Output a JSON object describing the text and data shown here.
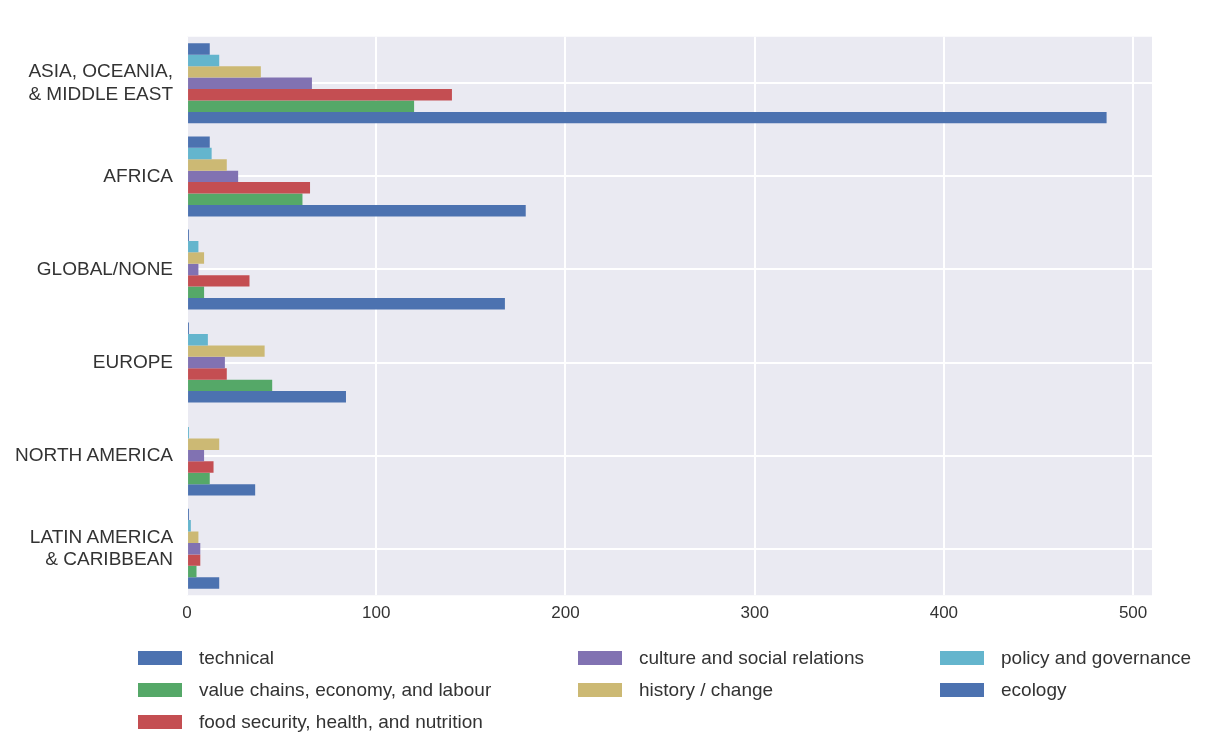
{
  "chart_data": {
    "type": "bar",
    "orientation": "horizontal",
    "categories": [
      "ASIA, OCEANIA,\n& MIDDLE EAST",
      "AFRICA",
      "GLOBAL/NONE",
      "EUROPE",
      "NORTH AMERICA",
      "LATIN AMERICA\n& CARIBBEAN"
    ],
    "series": [
      {
        "name": "technical",
        "color": "#4c72b0",
        "values": [
          486,
          179,
          168,
          84,
          36,
          17
        ]
      },
      {
        "name": "value chains, economy, and labour",
        "color": "#55a868",
        "values": [
          120,
          61,
          9,
          45,
          12,
          5
        ]
      },
      {
        "name": "food security, health, and nutrition",
        "color": "#c44e52",
        "values": [
          140,
          65,
          33,
          21,
          14,
          7
        ]
      },
      {
        "name": "culture and social relations",
        "color": "#8172b2",
        "values": [
          66,
          27,
          6,
          20,
          9,
          7
        ]
      },
      {
        "name": "history / change",
        "color": "#ccb974",
        "values": [
          39,
          21,
          9,
          41,
          17,
          6
        ]
      },
      {
        "name": "policy and governance",
        "color": "#64b5cd",
        "values": [
          17,
          13,
          6,
          11,
          1,
          2
        ]
      },
      {
        "name": "ecology",
        "color": "#4c72b0",
        "values": [
          12,
          12,
          1,
          1,
          0,
          1
        ]
      }
    ],
    "xlim": [
      0,
      510
    ],
    "xticks": [
      0,
      100,
      200,
      300,
      400,
      500
    ],
    "grid": true,
    "legend": "bottom"
  }
}
